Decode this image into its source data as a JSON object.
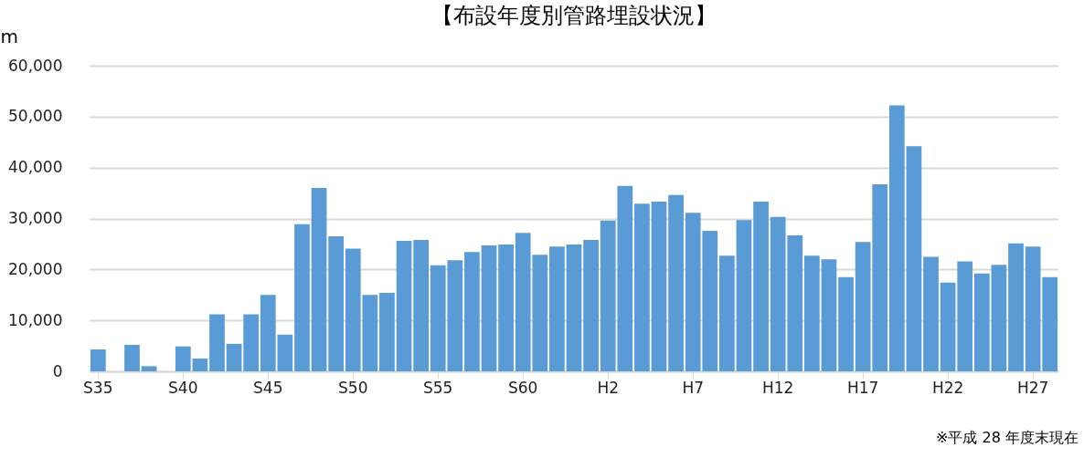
{
  "chart_data": {
    "type": "bar",
    "title": "【布設年度別管路埋設状況】",
    "ylabel": "m",
    "categories": [
      "S35",
      null,
      null,
      null,
      null,
      "S40",
      null,
      null,
      null,
      null,
      "S45",
      null,
      null,
      null,
      null,
      "S50",
      null,
      null,
      null,
      null,
      "S55",
      null,
      null,
      null,
      null,
      "S60",
      null,
      null,
      null,
      null,
      "H2",
      null,
      null,
      null,
      null,
      "H7",
      null,
      null,
      null,
      null,
      "H12",
      null,
      null,
      null,
      null,
      "H17",
      null,
      null,
      null,
      null,
      "H22",
      null,
      null,
      null,
      null,
      "H27",
      null
    ],
    "values": [
      4300,
      0,
      5200,
      1000,
      0,
      4900,
      2500,
      11200,
      5400,
      11200,
      15000,
      7200,
      28900,
      36000,
      26500,
      24100,
      15000,
      15400,
      25600,
      25800,
      20800,
      21800,
      23400,
      24700,
      24900,
      27200,
      22900,
      24500,
      24900,
      25800,
      29600,
      36400,
      32900,
      33300,
      34600,
      31100,
      27600,
      22700,
      29700,
      33300,
      30300,
      26700,
      22700,
      22000,
      18500,
      25400,
      36700,
      52200,
      44200,
      22500,
      17400,
      21600,
      19200,
      20900,
      25100,
      24500,
      18500
    ],
    "color": "#5b9bd5",
    "ylim": [
      0,
      60000
    ],
    "yticks": [
      0,
      {
        "value": 10000,
        "label": "10,000"
      },
      {
        "value": 20000,
        "label": "20,000"
      },
      {
        "value": 30000,
        "label": "30,000"
      },
      {
        "value": 40000,
        "label": "40,000"
      },
      {
        "value": 50000,
        "label": "50,000"
      },
      {
        "value": 60000,
        "label": "60,000"
      }
    ],
    "grid": "y",
    "annotations": [
      "※平成 28 年度末現在"
    ]
  }
}
